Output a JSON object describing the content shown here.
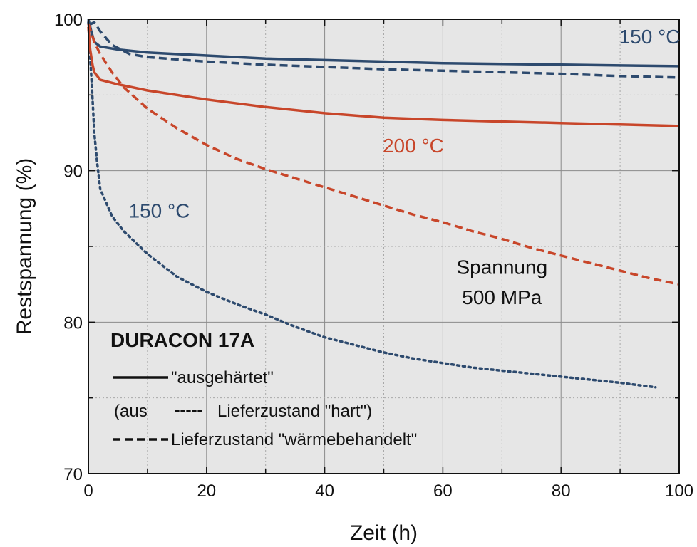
{
  "chart_data": {
    "type": "line",
    "xlabel": "Zeit (h)",
    "ylabel": "Restspannung (%)",
    "xlim": [
      0,
      100
    ],
    "ylim": [
      70,
      100
    ],
    "x_ticks": [
      0,
      20,
      40,
      60,
      80,
      100
    ],
    "y_ticks": [
      70,
      80,
      90,
      100
    ],
    "grid": true,
    "series": [
      {
        "style": "solid",
        "color": "#2d4a6e",
        "points": [
          [
            0,
            100
          ],
          [
            0.5,
            99.2
          ],
          [
            1,
            98.5
          ],
          [
            2,
            98.2
          ],
          [
            5,
            98.0
          ],
          [
            10,
            97.8
          ],
          [
            20,
            97.6
          ],
          [
            30,
            97.4
          ],
          [
            40,
            97.3
          ],
          [
            50,
            97.2
          ],
          [
            60,
            97.1
          ],
          [
            70,
            97.05
          ],
          [
            80,
            97.0
          ],
          [
            90,
            96.95
          ],
          [
            100,
            96.9
          ]
        ]
      },
      {
        "style": "dashed",
        "color": "#2d4a6e",
        "points": [
          [
            0,
            99.6
          ],
          [
            1,
            99.8
          ],
          [
            2,
            99.2
          ],
          [
            4,
            98.3
          ],
          [
            7,
            97.7
          ],
          [
            10,
            97.5
          ],
          [
            20,
            97.2
          ],
          [
            30,
            97.0
          ],
          [
            40,
            96.85
          ],
          [
            50,
            96.7
          ],
          [
            60,
            96.6
          ],
          [
            70,
            96.5
          ],
          [
            80,
            96.4
          ],
          [
            90,
            96.25
          ],
          [
            100,
            96.15
          ]
        ]
      },
      {
        "style": "dotted",
        "color": "#2d4a6e",
        "points": [
          [
            0,
            99.8
          ],
          [
            0.3,
            97.5
          ],
          [
            0.6,
            95.5
          ],
          [
            1,
            92.5
          ],
          [
            1.5,
            90.5
          ],
          [
            2,
            88.8
          ],
          [
            4,
            87.0
          ],
          [
            6,
            86.0
          ],
          [
            10,
            84.5
          ],
          [
            15,
            83.0
          ],
          [
            20,
            82.0
          ],
          [
            25,
            81.2
          ],
          [
            30,
            80.5
          ],
          [
            35,
            79.7
          ],
          [
            40,
            79.0
          ],
          [
            45,
            78.5
          ],
          [
            50,
            78.0
          ],
          [
            55,
            77.6
          ],
          [
            60,
            77.3
          ],
          [
            65,
            77.0
          ],
          [
            70,
            76.8
          ],
          [
            75,
            76.6
          ],
          [
            80,
            76.4
          ],
          [
            85,
            76.2
          ],
          [
            90,
            76.0
          ],
          [
            96,
            75.7
          ]
        ]
      },
      {
        "style": "solid",
        "color": "#c8462a",
        "points": [
          [
            0,
            99.5
          ],
          [
            0.3,
            98.0
          ],
          [
            0.7,
            97.0
          ],
          [
            1,
            96.5
          ],
          [
            2,
            96.0
          ],
          [
            5,
            95.7
          ],
          [
            10,
            95.3
          ],
          [
            20,
            94.7
          ],
          [
            30,
            94.2
          ],
          [
            40,
            93.8
          ],
          [
            50,
            93.5
          ],
          [
            60,
            93.35
          ],
          [
            70,
            93.25
          ],
          [
            80,
            93.15
          ],
          [
            90,
            93.05
          ],
          [
            100,
            92.95
          ]
        ]
      },
      {
        "style": "dashed",
        "color": "#c8462a",
        "points": [
          [
            0,
            99.7
          ],
          [
            1,
            98.5
          ],
          [
            2,
            97.7
          ],
          [
            4,
            96.5
          ],
          [
            6,
            95.5
          ],
          [
            10,
            94.1
          ],
          [
            15,
            92.8
          ],
          [
            20,
            91.7
          ],
          [
            25,
            90.8
          ],
          [
            30,
            90.1
          ],
          [
            35,
            89.5
          ],
          [
            40,
            88.9
          ],
          [
            45,
            88.3
          ],
          [
            50,
            87.7
          ],
          [
            55,
            87.1
          ],
          [
            60,
            86.6
          ],
          [
            65,
            86.0
          ],
          [
            70,
            85.5
          ],
          [
            75,
            84.9
          ],
          [
            80,
            84.4
          ],
          [
            85,
            83.9
          ],
          [
            90,
            83.4
          ],
          [
            95,
            82.9
          ],
          [
            100,
            82.5
          ]
        ]
      }
    ],
    "annotations": [
      {
        "text": "150 °C",
        "color": "#2d4a6e",
        "x": 95,
        "y": 98.4
      },
      {
        "text": "200 °C",
        "color": "#c8462a",
        "x": 55,
        "y": 91.2
      },
      {
        "text": "150 °C",
        "color": "#2d4a6e",
        "x": 12,
        "y": 86.9
      },
      {
        "text": "Spannung",
        "color": "#111111",
        "x": 70,
        "y": 83.2
      },
      {
        "text": "500 MPa",
        "color": "#111111",
        "x": 70,
        "y": 81.2
      }
    ],
    "legend": {
      "title": "DURACON 17A",
      "entries": [
        {
          "style": "solid",
          "label": "\"ausgehärtet\""
        },
        {
          "style": "dotted",
          "prefix": "(aus",
          "label": "Lieferzustand \"hart\")"
        },
        {
          "style": "dashed",
          "label": "Lieferzustand \"wärmebehandelt\""
        }
      ]
    }
  }
}
